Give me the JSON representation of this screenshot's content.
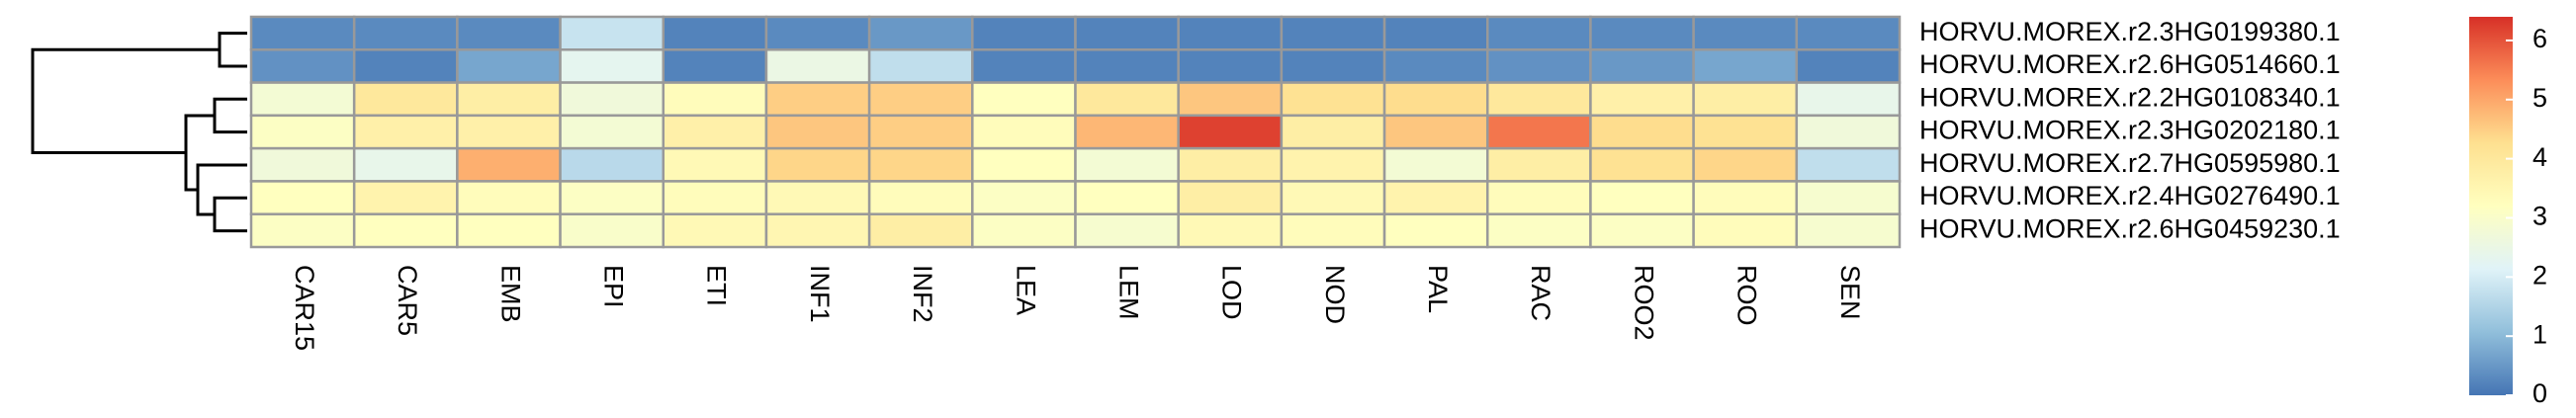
{
  "chart_data": {
    "type": "heatmap",
    "categories": [
      "CAR15",
      "CAR5",
      "EMB",
      "EPI",
      "ETI",
      "INF1",
      "INF2",
      "LEA",
      "LEM",
      "LOD",
      "NOD",
      "PAL",
      "RAC",
      "ROO2",
      "ROO",
      "SEN"
    ],
    "rows": [
      "HORVU.MOREX.r2.3HG0199380.1",
      "HORVU.MOREX.r2.6HG0514660.1",
      "HORVU.MOREX.r2.2HG0108340.1",
      "HORVU.MOREX.r2.3HG0202180.1",
      "HORVU.MOREX.r2.7HG0595980.1",
      "HORVU.MOREX.r2.4HG0276490.1",
      "HORVU.MOREX.r2.6HG0459230.1"
    ],
    "values": [
      [
        0.3,
        0.3,
        0.3,
        1.8,
        0.2,
        0.3,
        0.5,
        0.2,
        0.2,
        0.2,
        0.2,
        0.2,
        0.3,
        0.3,
        0.3,
        0.3
      ],
      [
        0.4,
        0.2,
        0.7,
        2.3,
        0.2,
        2.5,
        1.7,
        0.2,
        0.2,
        0.2,
        0.2,
        0.3,
        0.4,
        0.5,
        0.7,
        0.2
      ],
      [
        2.8,
        4.0,
        3.8,
        2.7,
        3.3,
        4.5,
        4.5,
        3.2,
        4.0,
        4.6,
        4.2,
        4.3,
        4.0,
        3.7,
        3.8,
        2.4
      ],
      [
        3.1,
        3.7,
        3.7,
        2.8,
        3.7,
        4.6,
        4.5,
        3.3,
        4.8,
        6.2,
        3.8,
        4.6,
        5.6,
        4.3,
        4.2,
        2.7
      ],
      [
        2.7,
        2.4,
        4.9,
        1.6,
        3.4,
        4.4,
        4.4,
        3.2,
        2.8,
        3.8,
        3.6,
        2.8,
        3.8,
        4.2,
        4.4,
        1.7
      ],
      [
        3.2,
        3.6,
        3.3,
        3.1,
        3.3,
        3.4,
        3.3,
        3.1,
        3.2,
        3.8,
        3.4,
        3.6,
        3.3,
        3.2,
        3.3,
        2.9
      ],
      [
        3.1,
        3.2,
        3.2,
        3.0,
        3.4,
        3.5,
        3.8,
        3.1,
        2.9,
        3.4,
        3.3,
        3.2,
        3.1,
        3.1,
        3.3,
        2.9
      ]
    ],
    "colorscale": [
      "#4575b4",
      "#91bfdb",
      "#e0f3f8",
      "#ffffbf",
      "#fee090",
      "#fc8d59",
      "#d73027"
    ],
    "zlim": [
      0,
      6.4
    ],
    "zticks": [
      0,
      1,
      2,
      3,
      4,
      5,
      6
    ]
  }
}
